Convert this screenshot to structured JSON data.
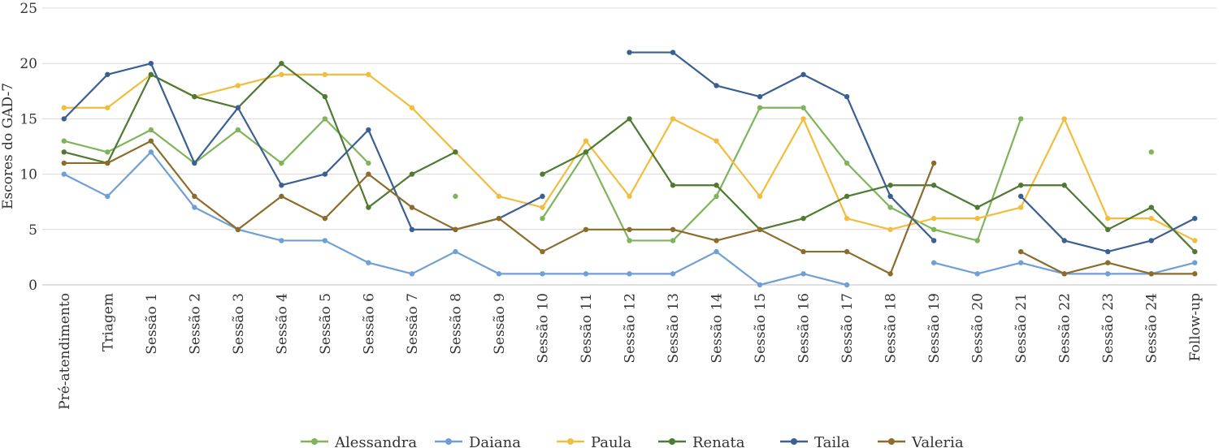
{
  "chart_data": {
    "type": "line",
    "ylabel": "Escores do GAD-7",
    "xlabel": "",
    "ylim": [
      0,
      25
    ],
    "yticks": [
      0,
      5,
      10,
      15,
      20,
      25
    ],
    "grid": true,
    "legend_position": "bottom",
    "categories": [
      "Pré-atendimento",
      "Triagem",
      "Sessão 1",
      "Sessão 2",
      "Sessão 3",
      "Sessão 4",
      "Sessão 5",
      "Sessão 6",
      "Sessão 7",
      "Sessão 8",
      "Sessão 9",
      "Sessão 10",
      "Sessão 11",
      "Sessão 12",
      "Sessão 13",
      "Sessão 14",
      "Sessão 15",
      "Sessão 16",
      "Sessão 17",
      "Sessão 18",
      "Sessão 19",
      "Sessão 20",
      "Sessão 21",
      "Sessão 22",
      "Sessão 23",
      "Sessão 24",
      "Follow-up"
    ],
    "series": [
      {
        "name": "Alessandra",
        "color": "#7fb45a",
        "values": [
          13,
          12,
          14,
          11,
          14,
          11,
          15,
          11,
          null,
          8,
          null,
          6,
          12,
          4,
          4,
          8,
          16,
          16,
          11,
          7,
          5,
          4,
          15,
          null,
          null,
          12,
          null
        ]
      },
      {
        "name": "Daiana",
        "color": "#6f9fd4",
        "values": [
          10,
          8,
          12,
          7,
          5,
          4,
          4,
          2,
          1,
          3,
          1,
          1,
          1,
          1,
          1,
          3,
          0,
          1,
          0,
          null,
          2,
          1,
          2,
          1,
          1,
          1,
          2
        ]
      },
      {
        "name": "Paula",
        "color": "#f2bd3c",
        "values": [
          16,
          16,
          19,
          17,
          18,
          19,
          19,
          19,
          16,
          12,
          8,
          7,
          13,
          8,
          15,
          13,
          8,
          15,
          6,
          5,
          6,
          6,
          7,
          15,
          6,
          6,
          4
        ]
      },
      {
        "name": "Renata",
        "color": "#4e7a32",
        "values": [
          12,
          11,
          19,
          17,
          16,
          20,
          17,
          7,
          10,
          12,
          null,
          10,
          12,
          15,
          9,
          9,
          5,
          6,
          8,
          9,
          9,
          7,
          9,
          9,
          5,
          7,
          3
        ]
      },
      {
        "name": "Taila",
        "color": "#3a5f92",
        "values": [
          15,
          19,
          20,
          11,
          16,
          9,
          10,
          14,
          5,
          5,
          6,
          8,
          null,
          21,
          21,
          18,
          17,
          19,
          17,
          8,
          4,
          null,
          8,
          4,
          3,
          4,
          6
        ]
      },
      {
        "name": "Valeria",
        "color": "#8c6c2b",
        "values": [
          11,
          11,
          13,
          8,
          5,
          8,
          6,
          10,
          7,
          5,
          6,
          3,
          5,
          5,
          5,
          4,
          5,
          3,
          3,
          1,
          11,
          null,
          3,
          1,
          2,
          1,
          1
        ]
      }
    ]
  }
}
